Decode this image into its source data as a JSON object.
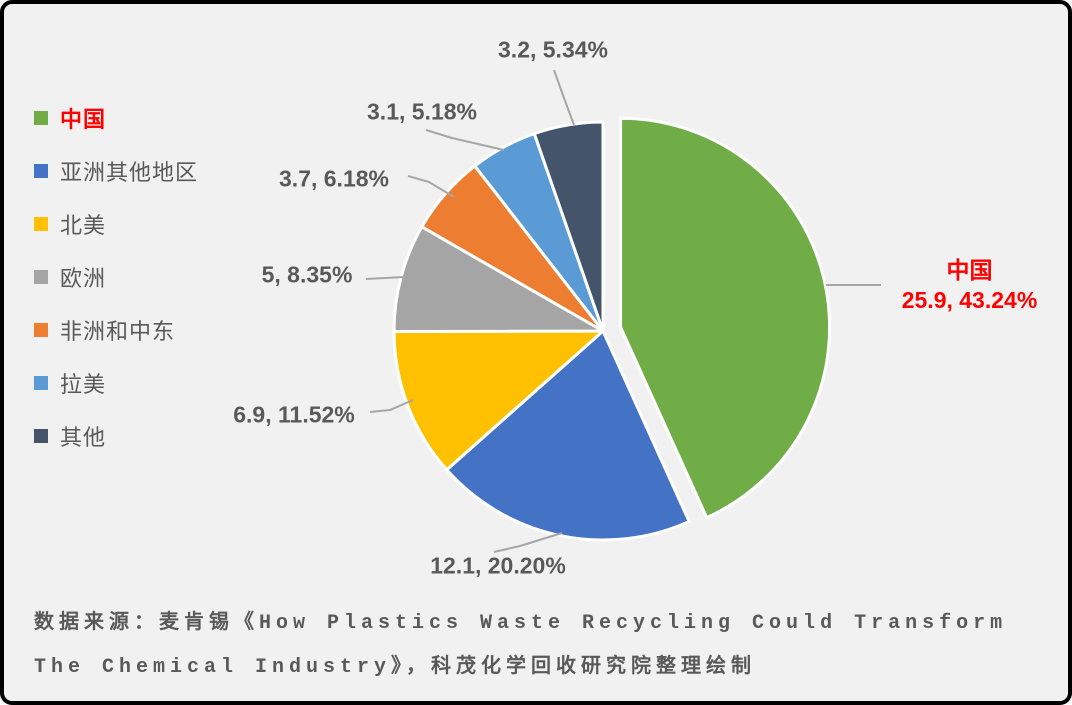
{
  "chart_data": {
    "type": "pie",
    "title": "",
    "start_angle_deg": 0,
    "direction": "clockwise",
    "legend_position": "left",
    "slices": [
      {
        "id": "china",
        "label": "中国",
        "value": 25.9,
        "pct": 43.24,
        "data_label": "25.9, 43.24%",
        "color": "#70AD47",
        "exploded": true,
        "emphasis_color": "#FF0000"
      },
      {
        "id": "other-asia",
        "label": "亚洲其他地区",
        "value": 12.1,
        "pct": 20.2,
        "data_label": "12.1, 20.20%",
        "color": "#4472C4",
        "exploded": false
      },
      {
        "id": "north-america",
        "label": "北美",
        "value": 6.9,
        "pct": 11.52,
        "data_label": "6.9, 11.52%",
        "color": "#FFC000",
        "exploded": false
      },
      {
        "id": "europe",
        "label": "欧洲",
        "value": 5,
        "pct": 8.35,
        "data_label": "5, 8.35%",
        "color": "#A5A5A5",
        "exploded": false
      },
      {
        "id": "africa-middle-east",
        "label": "非洲和中东",
        "value": 3.7,
        "pct": 6.18,
        "data_label": "3.7, 6.18%",
        "color": "#ED7D31",
        "exploded": false
      },
      {
        "id": "latin-america",
        "label": "拉美",
        "value": 3.1,
        "pct": 5.18,
        "data_label": "3.1, 5.18%",
        "color": "#5B9BD5",
        "exploded": false
      },
      {
        "id": "other",
        "label": "其他",
        "value": 3.2,
        "pct": 5.34,
        "data_label": "3.2, 5.34%",
        "color": "#44546A",
        "exploded": false
      }
    ]
  },
  "colors": {
    "background": "#F1F1F1",
    "frame_border": "#000000",
    "text": "#595959",
    "leader_line": "#A6A6A6",
    "highlight": "#FF0000",
    "slice_gap": "#FFFFFF"
  },
  "source": {
    "line1": "数据来源：麦肯锡《How Plastics Waste Recycling Could Transform",
    "line2": "The Chemical Industry》，科茂化学回收研究院整理绘制"
  }
}
